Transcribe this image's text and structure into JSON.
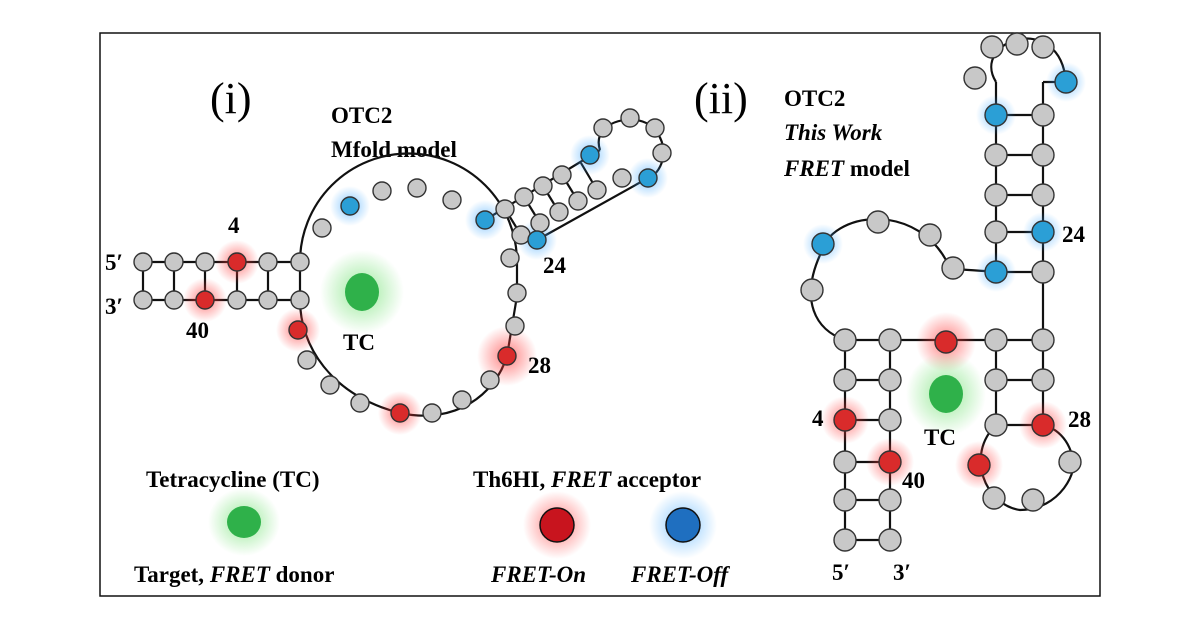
{
  "panel_i": {
    "tag": "(i)",
    "title_line1": "OTC2",
    "title_line2": "Mfold model",
    "label_4": "4",
    "label_24": "24",
    "label_28": "28",
    "label_40": "40",
    "label_5p": "5′",
    "label_3p": "3′",
    "target_label": "TC"
  },
  "panel_ii": {
    "tag": "(ii)",
    "title_line1": "OTC2",
    "title_line2": "This Work",
    "title_line3_a": "FRET",
    "title_line3_b": " model",
    "label_4": "4",
    "label_24": "24",
    "label_28": "28",
    "label_40": "40",
    "label_5p": "5′",
    "label_3p": "3′",
    "target_label": "TC"
  },
  "legend": {
    "tc_title": "Tetracycline (TC)",
    "tc_caption_a": "Target, ",
    "tc_caption_b": "FRET",
    "tc_caption_c": " donor",
    "acceptor_title_a": "Th6HI, ",
    "acceptor_title_b": "FRET",
    "acceptor_title_c": " acceptor",
    "fret_on": "FRET-On",
    "fret_off": "FRET-Off"
  },
  "colors": {
    "nucleotide": "#c8c8c8",
    "fret_on_red": "#d92b2b",
    "fret_off_blue": "#2b9fd6",
    "tc_green": "#2fb14a",
    "legend_red": "#c8141e",
    "legend_blue": "#1f6fc0"
  }
}
